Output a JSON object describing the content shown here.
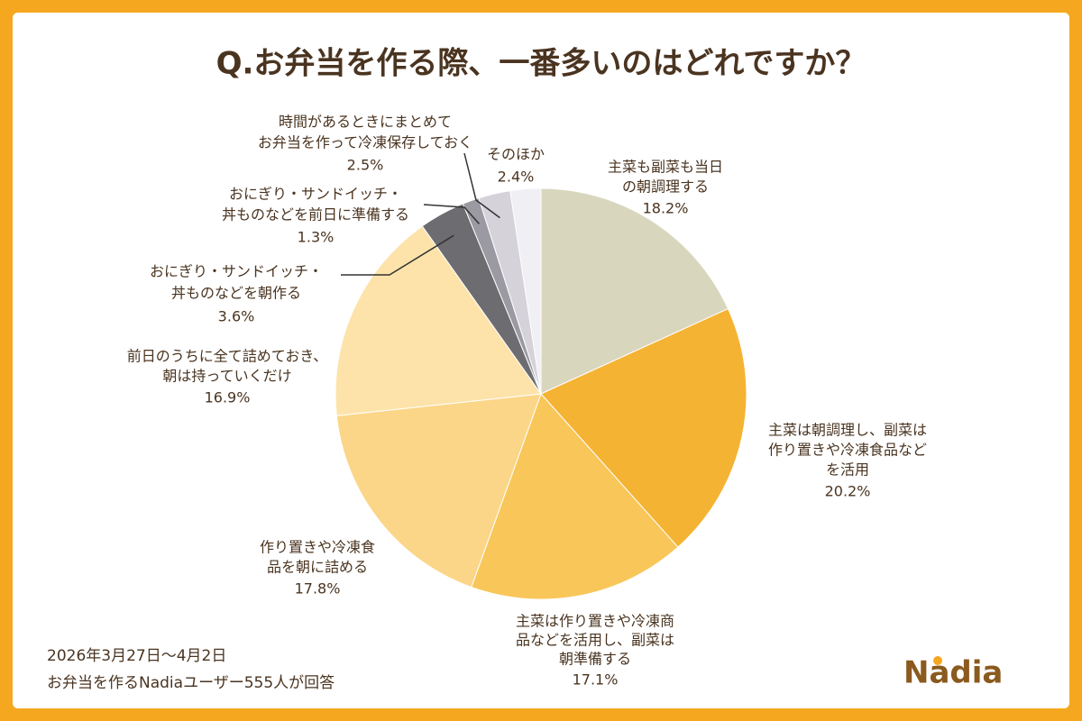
{
  "chart_data": {
    "type": "pie",
    "title": "Q.お弁当を作る際、一番多いのはどれですか？",
    "labels": [
      [
        "主菜も副菜も当日",
        "の朝調理する"
      ],
      [
        "主菜は朝調理し、副菜は",
        "作り置きや冷凍食品など",
        "を活用"
      ],
      [
        "主菜は作り置きや冷凍商",
        "品などを活用し、副菜は",
        "朝準備する"
      ],
      [
        "作り置きや冷凍食",
        "品を朝に詰める"
      ],
      [
        "前日のうちに全て詰めておき、",
        "朝は持っていくだけ"
      ],
      [
        "おにぎり・サンドイッチ・",
        "丼ものなどを朝作る"
      ],
      [
        "おにぎり・サンドイッチ・",
        "丼ものなどを前日に準備する"
      ],
      [
        "時間があるときにまとめて",
        "お弁当を作って冷凍保存しておく"
      ],
      [
        "そのほか"
      ]
    ],
    "values": [
      18.2,
      20.2,
      17.1,
      17.8,
      16.9,
      3.6,
      1.3,
      2.5,
      2.4
    ],
    "value_labels": [
      "18.2%",
      "20.2%",
      "17.1%",
      "17.8%",
      "16.9%",
      "3.6%",
      "1.3%",
      "2.5%",
      "2.4%"
    ],
    "colors": [
      "#d9d6be",
      "#f5b334",
      "#f8c659",
      "#fbd688",
      "#fde3aa",
      "#6d6c70",
      "#9b99a1",
      "#d5d3d9",
      "#efeff4"
    ],
    "footnote": [
      "2026年3月27日～4月2日",
      "お弁当を作るNadiaユーザー555人が回答"
    ],
    "logo": "Nadia"
  }
}
